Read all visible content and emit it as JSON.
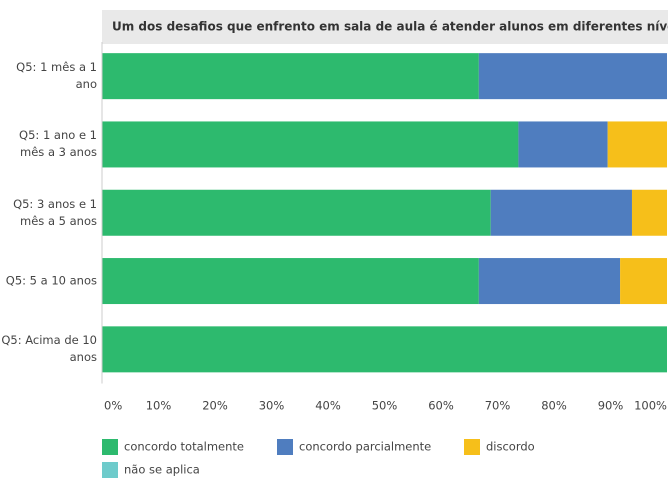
{
  "chart_data": {
    "type": "stacked_barh",
    "title": "Um dos desafios que enfrento em sala de aula é atender alunos em diferentes níveis de...",
    "categories": [
      "Q5: 1 mês a 1 ano",
      "Q5: 1 ano e 1 mês a 3 anos",
      "Q5: 3 anos e 1 mês a 5 anos",
      "Q5: 5 a 10 anos",
      "Q5: Acima de 10 anos"
    ],
    "series": [
      {
        "name": "concordo totalmente",
        "color": "#2dba6e",
        "values": [
          66.7,
          73.7,
          68.8,
          66.7,
          100
        ]
      },
      {
        "name": "concordo parcialmente",
        "color": "#4f7dbf",
        "values": [
          33.3,
          15.8,
          25,
          25,
          0
        ]
      },
      {
        "name": "discordo",
        "color": "#f6bf1a",
        "values": [
          0,
          10.5,
          6.2,
          8.3,
          0
        ]
      },
      {
        "name": "não se aplica",
        "color": "#6ecbcb",
        "values": [
          0,
          0,
          0,
          0,
          0
        ]
      }
    ],
    "xlim": [
      0,
      100
    ],
    "xticks": [
      {
        "value": 0,
        "label": "0%"
      },
      {
        "value": 10,
        "label": "10%"
      },
      {
        "value": 20,
        "label": "20%"
      },
      {
        "value": 30,
        "label": "30%"
      },
      {
        "value": 40,
        "label": "40%"
      },
      {
        "value": 50,
        "label": "50%"
      },
      {
        "value": 60,
        "label": "60%"
      },
      {
        "value": 70,
        "label": "70%"
      },
      {
        "value": 80,
        "label": "80%"
      },
      {
        "value": 90,
        "label": "90%"
      },
      {
        "value": 100,
        "label": "100%"
      }
    ]
  }
}
